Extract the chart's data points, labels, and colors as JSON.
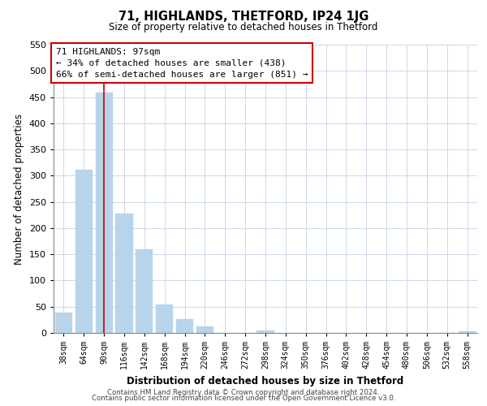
{
  "title": "71, HIGHLANDS, THETFORD, IP24 1JG",
  "subtitle": "Size of property relative to detached houses in Thetford",
  "xlabel": "Distribution of detached houses by size in Thetford",
  "ylabel": "Number of detached properties",
  "footer_lines": [
    "Contains HM Land Registry data © Crown copyright and database right 2024.",
    "Contains public sector information licensed under the Open Government Licence v3.0."
  ],
  "bins": [
    "38sqm",
    "64sqm",
    "90sqm",
    "116sqm",
    "142sqm",
    "168sqm",
    "194sqm",
    "220sqm",
    "246sqm",
    "272sqm",
    "298sqm",
    "324sqm",
    "350sqm",
    "376sqm",
    "402sqm",
    "428sqm",
    "454sqm",
    "480sqm",
    "506sqm",
    "532sqm",
    "558sqm"
  ],
  "values": [
    38,
    311,
    459,
    227,
    160,
    55,
    26,
    12,
    0,
    0,
    4,
    0,
    0,
    0,
    0,
    0,
    0,
    0,
    0,
    0,
    3
  ],
  "bar_color": "#b8d4ea",
  "red_line_x": 2.0,
  "annotation_title": "71 HIGHLANDS: 97sqm",
  "annotation_line1": "← 34% of detached houses are smaller (438)",
  "annotation_line2": "66% of semi-detached houses are larger (851) →",
  "ylim": [
    0,
    550
  ],
  "yticks": [
    0,
    50,
    100,
    150,
    200,
    250,
    300,
    350,
    400,
    450,
    500,
    550
  ],
  "red_line_color": "#cc0000",
  "annotation_box_facecolor": "#ffffff",
  "annotation_box_edgecolor": "#cc0000",
  "background_color": "#ffffff",
  "grid_color": "#ccd8e8"
}
